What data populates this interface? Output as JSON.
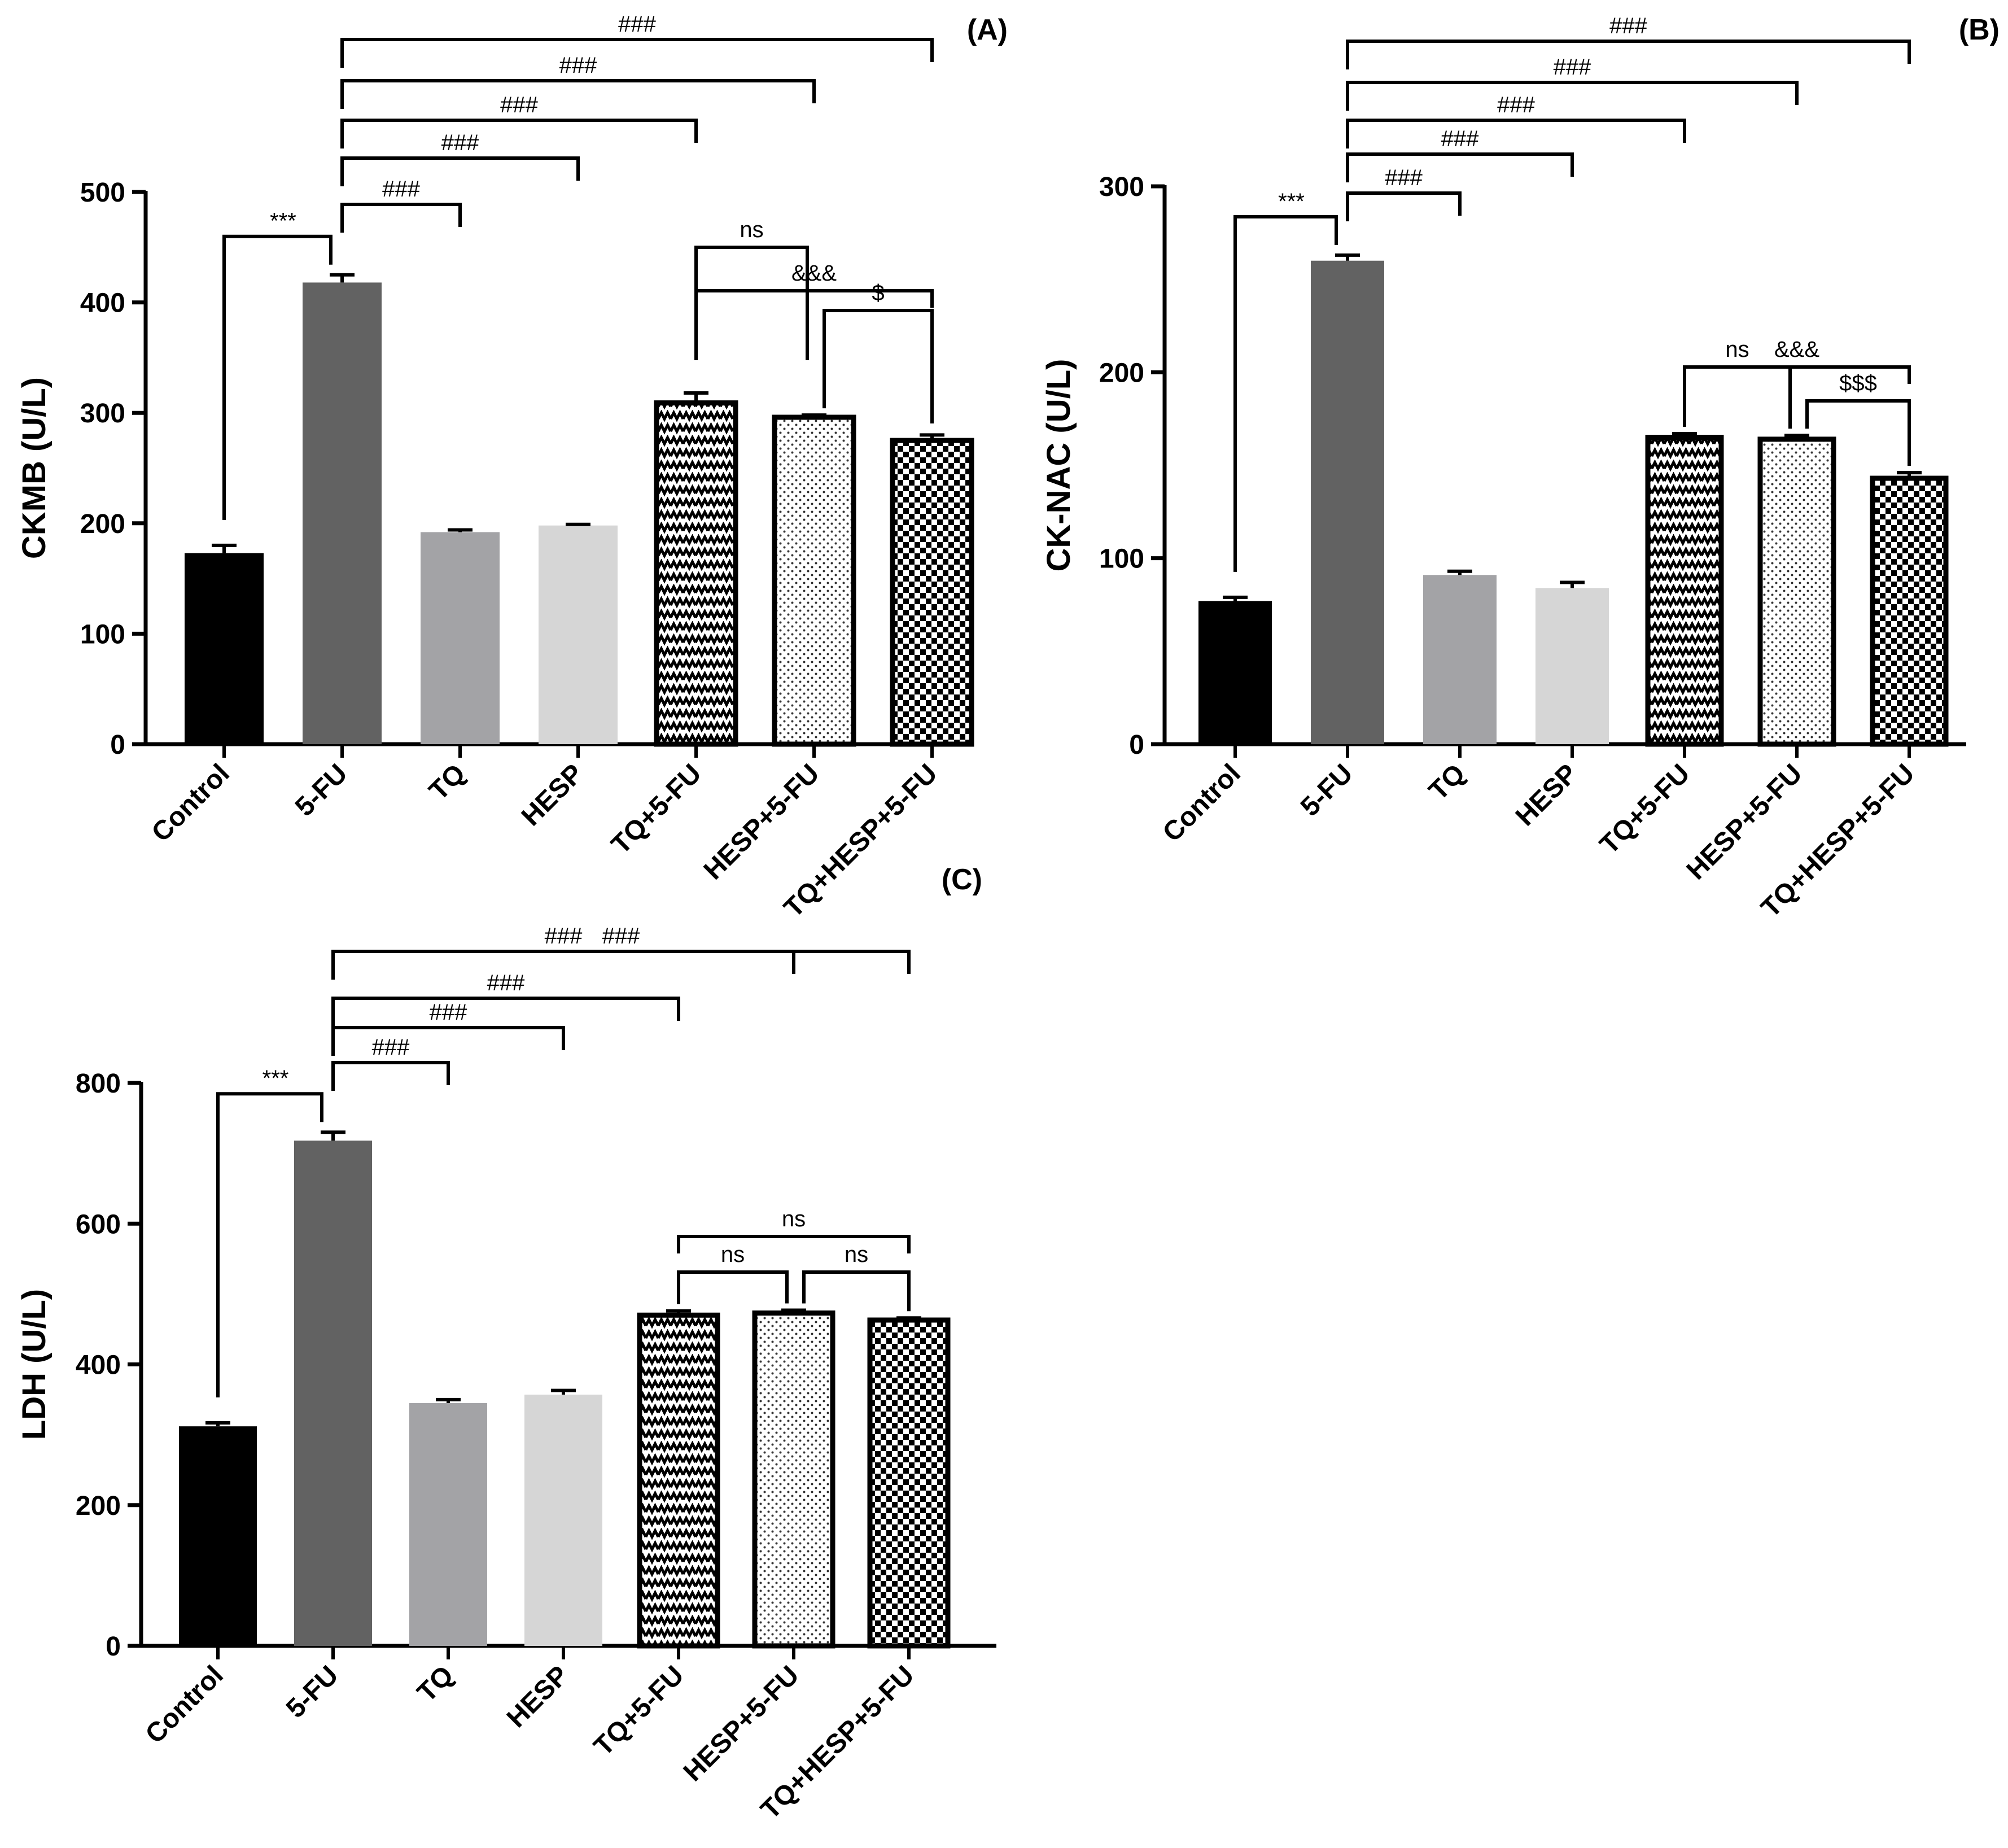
{
  "chart_data": [
    {
      "id": "A",
      "type": "bar",
      "panel_label": "(A)",
      "title": "",
      "xlabel": "",
      "ylabel": "CKMB (U/L)",
      "ylim": [
        0,
        500
      ],
      "yticks": [
        0,
        100,
        200,
        300,
        400,
        500
      ],
      "categories": [
        "Control",
        "5-FU",
        "TQ",
        "HESP",
        "TQ+5-FU",
        "HESP+5-FU",
        "TQ+HESP+5-FU"
      ],
      "values": [
        173,
        418,
        192,
        198,
        309,
        296,
        275
      ],
      "errors": [
        7,
        7,
        2,
        1,
        9,
        2,
        5
      ],
      "fills": [
        "solid-black",
        "solid-darkgray",
        "solid-gray",
        "solid-lightgray",
        "zigzag",
        "dots",
        "checker"
      ],
      "comparisons": [
        {
          "from": 1,
          "to": 0,
          "label": "***"
        },
        {
          "from": 1,
          "to": 2,
          "label": "###"
        },
        {
          "from": 1,
          "to": 3,
          "label": "###"
        },
        {
          "from": 1,
          "to": 4,
          "label": "###"
        },
        {
          "from": 1,
          "to": 5,
          "label": "###"
        },
        {
          "from": 1,
          "to": 6,
          "label": "###"
        },
        {
          "from": 4,
          "to": 5,
          "label": "ns"
        },
        {
          "from": 5,
          "to": 6,
          "label": "$"
        },
        {
          "from": 4,
          "to": 6,
          "label": "&&&"
        }
      ]
    },
    {
      "id": "B",
      "type": "bar",
      "panel_label": "(B)",
      "title": "",
      "xlabel": "",
      "ylabel": "CK-NAC (U/L)",
      "ylim": [
        0,
        300
      ],
      "yticks": [
        0,
        100,
        200,
        300
      ],
      "categories": [
        "Control",
        "5-FU",
        "TQ",
        "HESP",
        "TQ+5-FU",
        "HESP+5-FU",
        "TQ+HESP+5-FU"
      ],
      "values": [
        77,
        260,
        91,
        84,
        165,
        164,
        143
      ],
      "errors": [
        2,
        3,
        2,
        3,
        2,
        2,
        3
      ],
      "fills": [
        "solid-black",
        "solid-darkgray",
        "solid-gray",
        "solid-lightgray",
        "zigzag",
        "dots",
        "checker"
      ],
      "comparisons": [
        {
          "from": 1,
          "to": 0,
          "label": "***"
        },
        {
          "from": 1,
          "to": 2,
          "label": "###"
        },
        {
          "from": 1,
          "to": 3,
          "label": "###"
        },
        {
          "from": 1,
          "to": 4,
          "label": "###"
        },
        {
          "from": 1,
          "to": 5,
          "label": "###"
        },
        {
          "from": 1,
          "to": 6,
          "label": "###"
        },
        {
          "from": 4,
          "to": 5,
          "label": "ns"
        },
        {
          "from": 5,
          "to": 6,
          "label": "$$$"
        },
        {
          "from": 4,
          "to": 6,
          "label": "&&&"
        }
      ]
    },
    {
      "id": "C",
      "type": "bar",
      "panel_label": "(C)",
      "title": "",
      "xlabel": "",
      "ylabel": "LDH (U/L)",
      "ylim": [
        0,
        800
      ],
      "yticks": [
        0,
        200,
        400,
        600,
        800
      ],
      "categories": [
        "Control",
        "5-FU",
        "TQ",
        "HESP",
        "TQ+5-FU",
        "HESP+5-FU",
        "TQ+HESP+5-FU"
      ],
      "values": [
        312,
        718,
        345,
        357,
        470,
        473,
        463
      ],
      "errors": [
        5,
        12,
        5,
        6,
        6,
        4,
        3
      ],
      "fills": [
        "solid-black",
        "solid-darkgray",
        "solid-gray",
        "solid-lightgray",
        "zigzag",
        "dots",
        "checker"
      ],
      "comparisons": [
        {
          "from": 1,
          "to": 0,
          "label": "***"
        },
        {
          "from": 1,
          "to": 2,
          "label": "###"
        },
        {
          "from": 1,
          "to": 3,
          "label": "###"
        },
        {
          "from": 1,
          "to": 4,
          "label": "###"
        },
        {
          "from": 1,
          "to": 5,
          "label": "###"
        },
        {
          "from": 1,
          "to": 6,
          "label": "###"
        },
        {
          "from": 4,
          "to": 5,
          "label": "ns"
        },
        {
          "from": 5,
          "to": 6,
          "label": "ns"
        },
        {
          "from": 4,
          "to": 6,
          "label": "ns"
        }
      ]
    }
  ],
  "colors": {
    "solid-black": "#000000",
    "solid-darkgray": "#626262",
    "solid-gray": "#a3a3a6",
    "solid-lightgray": "#d6d6d6",
    "stroke": "#000000"
  }
}
